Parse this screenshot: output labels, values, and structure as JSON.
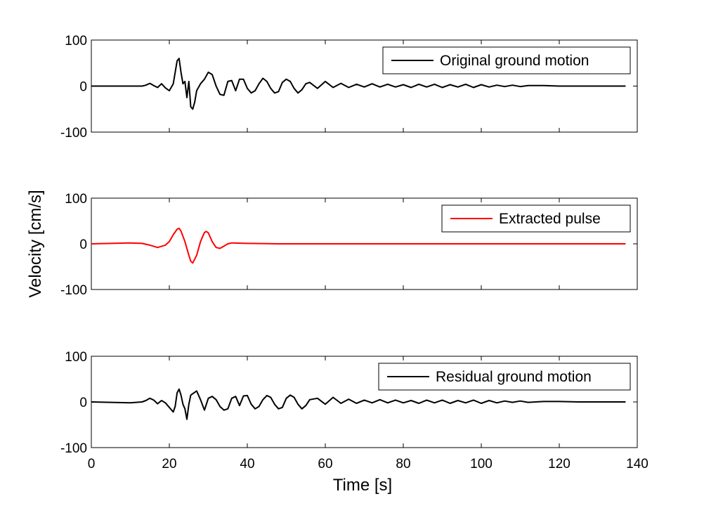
{
  "chart_data": {
    "type": "line",
    "xlabel": "Time [s]",
    "ylabel": "Velocity [cm/s]",
    "xlim": [
      0,
      140
    ],
    "xticks": [
      "0",
      "20",
      "40",
      "60",
      "80",
      "100",
      "120",
      "140"
    ],
    "grid": false,
    "panels": [
      {
        "legend": "Original ground motion",
        "legend_position": "top-right",
        "color": "#000000",
        "ylim": [
          -100,
          100
        ],
        "yticks": [
          "100",
          "0",
          "-100"
        ],
        "x": [
          0,
          13,
          14,
          15,
          16,
          17,
          18,
          19,
          20,
          21,
          22,
          22.5,
          23,
          23.5,
          24,
          24.5,
          25,
          25.5,
          26,
          26.5,
          27,
          28,
          29,
          30,
          31,
          32,
          33,
          34,
          35,
          36,
          37,
          38,
          39,
          40,
          41,
          42,
          43,
          44,
          45,
          46,
          47,
          48,
          49,
          50,
          51,
          52,
          53,
          54,
          55,
          56,
          58,
          60,
          62,
          64,
          66,
          68,
          70,
          72,
          74,
          76,
          78,
          80,
          82,
          84,
          86,
          88,
          90,
          92,
          94,
          96,
          98,
          100,
          102,
          104,
          106,
          108,
          110,
          112,
          116,
          120,
          125,
          130,
          137
        ],
        "values": [
          0,
          0,
          2,
          6,
          1,
          -3,
          5,
          -4,
          -10,
          5,
          55,
          60,
          30,
          5,
          10,
          -25,
          10,
          -45,
          -50,
          -35,
          -10,
          5,
          15,
          30,
          25,
          0,
          -18,
          -20,
          10,
          12,
          -10,
          15,
          15,
          -5,
          -15,
          -10,
          5,
          17,
          10,
          -5,
          -15,
          -12,
          8,
          15,
          10,
          -5,
          -15,
          -8,
          5,
          8,
          -5,
          10,
          -3,
          6,
          -3,
          4,
          -2,
          5,
          -2,
          4,
          -2,
          3,
          -3,
          4,
          -2,
          4,
          -3,
          3,
          -2,
          4,
          -3,
          3,
          -2,
          2,
          -1,
          2,
          -1,
          1,
          1,
          0,
          0,
          0,
          0
        ]
      },
      {
        "legend": "Extracted pulse",
        "legend_position": "top-right",
        "color": "#ff0000",
        "ylim": [
          -100,
          100
        ],
        "yticks": [
          "100",
          "0",
          "-100"
        ],
        "x": [
          0,
          5,
          10,
          13,
          15,
          17,
          19,
          20,
          21,
          22,
          22.5,
          23,
          24,
          25,
          25.5,
          26,
          27,
          28,
          29,
          29.5,
          30,
          31,
          32,
          33,
          34,
          35,
          36,
          40,
          48,
          60,
          137
        ],
        "values": [
          0,
          1,
          2,
          1,
          -3,
          -8,
          -3,
          5,
          20,
          32,
          34,
          28,
          5,
          -25,
          -38,
          -42,
          -25,
          5,
          25,
          27,
          24,
          5,
          -8,
          -10,
          -5,
          0,
          2,
          1,
          0,
          0,
          0
        ]
      },
      {
        "legend": "Residual ground motion",
        "legend_position": "top-right",
        "color": "#000000",
        "ylim": [
          -100,
          100
        ],
        "yticks": [
          "100",
          "0",
          "-100"
        ],
        "x": [
          0,
          10,
          13,
          14,
          15,
          16,
          17,
          18,
          19,
          20,
          21,
          21.5,
          22,
          22.5,
          23,
          23.5,
          24,
          24.5,
          25,
          25.5,
          26,
          27,
          28,
          29,
          30,
          31,
          32,
          33,
          34,
          35,
          36,
          37,
          38,
          39,
          40,
          41,
          42,
          43,
          44,
          45,
          46,
          47,
          48,
          49,
          50,
          51,
          52,
          53,
          54,
          55,
          56,
          58,
          60,
          62,
          64,
          66,
          68,
          70,
          72,
          74,
          76,
          78,
          80,
          82,
          84,
          86,
          88,
          90,
          92,
          94,
          96,
          98,
          100,
          102,
          104,
          106,
          108,
          110,
          112,
          116,
          120,
          125,
          130,
          137
        ],
        "values": [
          0,
          -2,
          0,
          3,
          8,
          4,
          -4,
          3,
          -2,
          -12,
          -22,
          -10,
          20,
          28,
          15,
          -5,
          -15,
          -38,
          -5,
          15,
          18,
          24,
          5,
          -18,
          8,
          12,
          5,
          -10,
          -18,
          -15,
          8,
          12,
          -8,
          13,
          14,
          -5,
          -15,
          -10,
          5,
          14,
          10,
          -5,
          -15,
          -12,
          8,
          15,
          10,
          -5,
          -15,
          -8,
          5,
          8,
          -5,
          10,
          -3,
          6,
          -3,
          4,
          -2,
          5,
          -2,
          4,
          -2,
          3,
          -3,
          4,
          -2,
          4,
          -3,
          3,
          -2,
          4,
          -3,
          3,
          -2,
          2,
          -1,
          2,
          -1,
          1,
          1,
          0,
          0,
          0
        ]
      }
    ]
  }
}
